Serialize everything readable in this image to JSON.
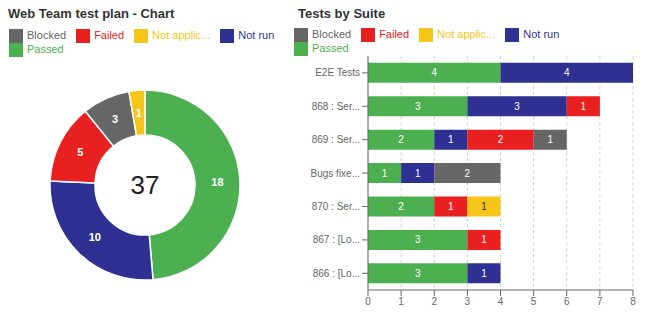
{
  "chart_data": [
    {
      "type": "pie",
      "title": "Web Team test plan - Chart",
      "categories": [
        "Passed",
        "Not run",
        "Failed",
        "Blocked",
        "Not applic..."
      ],
      "values": [
        18,
        10,
        5,
        3,
        1
      ],
      "colors": [
        "#4CAF50",
        "#2E3191",
        "#E82020",
        "#666666",
        "#F5C518"
      ],
      "annotations": [
        "37"
      ],
      "data_labels": true,
      "legend": "top"
    },
    {
      "type": "bar",
      "title": "Tests by Suite",
      "orientation": "horizontal",
      "stacked": true,
      "categories": [
        "E2E Tests",
        "868 : Ser...",
        "869 : Ser...",
        "Bugs fixe...",
        "870 : Ser...",
        "867 : [Lo...",
        "866 : [Lo..."
      ],
      "series": [
        {
          "name": "Passed",
          "color": "#4CAF50",
          "values": [
            4,
            3,
            2,
            1,
            2,
            3,
            3
          ]
        },
        {
          "name": "Not run",
          "color": "#2E3191",
          "values": [
            4,
            3,
            1,
            1,
            0,
            0,
            1
          ]
        },
        {
          "name": "Failed",
          "color": "#E82020",
          "values": [
            0,
            1,
            2,
            0,
            1,
            1,
            0
          ]
        },
        {
          "name": "Blocked",
          "color": "#666666",
          "values": [
            0,
            0,
            1,
            2,
            0,
            0,
            0
          ]
        },
        {
          "name": "Not applic...",
          "color": "#F5C518",
          "values": [
            0,
            0,
            0,
            0,
            1,
            0,
            0
          ]
        }
      ],
      "xlim": [
        0,
        8
      ],
      "xticks": [
        0,
        1,
        2,
        3,
        4,
        5,
        6,
        7,
        8
      ],
      "grid": true,
      "data_labels": true,
      "legend": "top"
    }
  ]
}
